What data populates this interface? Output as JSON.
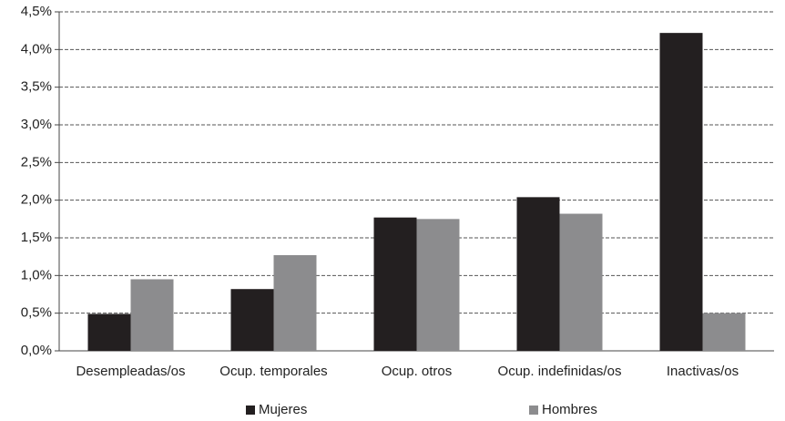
{
  "chart_data": {
    "type": "bar",
    "categories": [
      "Desempleadas/os",
      "Ocup. temporales",
      "Ocup. otros",
      "Ocup. indefinidas/os",
      "Inactivas/os"
    ],
    "series": [
      {
        "name": "Mujeres",
        "color": "#231f20",
        "values": [
          0.49,
          0.82,
          1.77,
          2.04,
          4.22
        ]
      },
      {
        "name": "Hombres",
        "color": "#8c8c8e",
        "values": [
          0.95,
          1.27,
          1.75,
          1.82,
          0.5
        ]
      }
    ],
    "ylim": [
      0,
      4.5
    ],
    "yticks": [
      {
        "value": 0,
        "label": "0,0%"
      },
      {
        "value": 0.5,
        "label": "0,5%"
      },
      {
        "value": 1,
        "label": "1,0%"
      },
      {
        "value": 1.5,
        "label": "1,5%"
      },
      {
        "value": 2,
        "label": "2,0%"
      },
      {
        "value": 2.5,
        "label": "2,5%"
      },
      {
        "value": 3,
        "label": "3,0%"
      },
      {
        "value": 3.5,
        "label": "3,5%"
      },
      {
        "value": 4,
        "label": "4,0%"
      },
      {
        "value": 4.5,
        "label": "4,5%"
      }
    ],
    "grid": true,
    "legend": "bottom"
  }
}
